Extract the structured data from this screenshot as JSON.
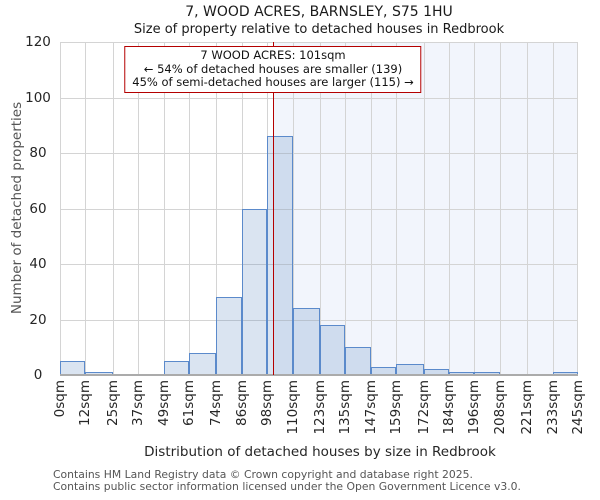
{
  "chart_data": {
    "type": "bar",
    "title": "7, WOOD ACRES, BARNSLEY, S75 1HU",
    "subtitle": "Size of property relative to detached houses in Redbrook",
    "xlabel": "Distribution of detached houses by size in Redbrook",
    "ylabel": "Number of detached properties",
    "xlim": [
      0,
      245
    ],
    "ylim": [
      0,
      120
    ],
    "yticks": [
      0,
      20,
      40,
      60,
      80,
      100,
      120
    ],
    "bin_edges_sqm": [
      0,
      12,
      25,
      37,
      49,
      61,
      74,
      86,
      98,
      110,
      123,
      135,
      147,
      159,
      172,
      184,
      196,
      208,
      221,
      233,
      245
    ],
    "x_tick_labels": [
      "0sqm",
      "12sqm",
      "25sqm",
      "37sqm",
      "49sqm",
      "61sqm",
      "74sqm",
      "86sqm",
      "98sqm",
      "110sqm",
      "123sqm",
      "135sqm",
      "147sqm",
      "159sqm",
      "172sqm",
      "184sqm",
      "196sqm",
      "208sqm",
      "221sqm",
      "233sqm",
      "245sqm"
    ],
    "values": [
      5,
      1,
      0,
      0,
      5,
      8,
      28,
      60,
      86,
      24,
      18,
      10,
      3,
      4,
      2,
      1,
      1,
      0,
      0,
      1
    ],
    "grid": true,
    "legend": null,
    "marker": {
      "value_sqm": 101,
      "shaded_side": "right"
    },
    "annotation": {
      "line1": "7 WOOD ACRES: 101sqm",
      "line2": "← 54% of detached houses are smaller (139)",
      "line3": "45% of semi-detached houses are larger (115) →"
    }
  },
  "colors": {
    "bar_fill": "rgba(79,129,189,0.21)",
    "bar_border": "#5b8acb",
    "marker_line": "#b40000",
    "annotation_border": "#b40000",
    "shade_right_of_marker": "#f2f5fc",
    "gridline": "#d4d4d4",
    "axis_line": "#ababab"
  },
  "footer": {
    "line1": "Contains HM Land Registry data © Crown copyright and database right 2025.",
    "line2": "Contains public sector information licensed under the Open Government Licence v3.0."
  }
}
